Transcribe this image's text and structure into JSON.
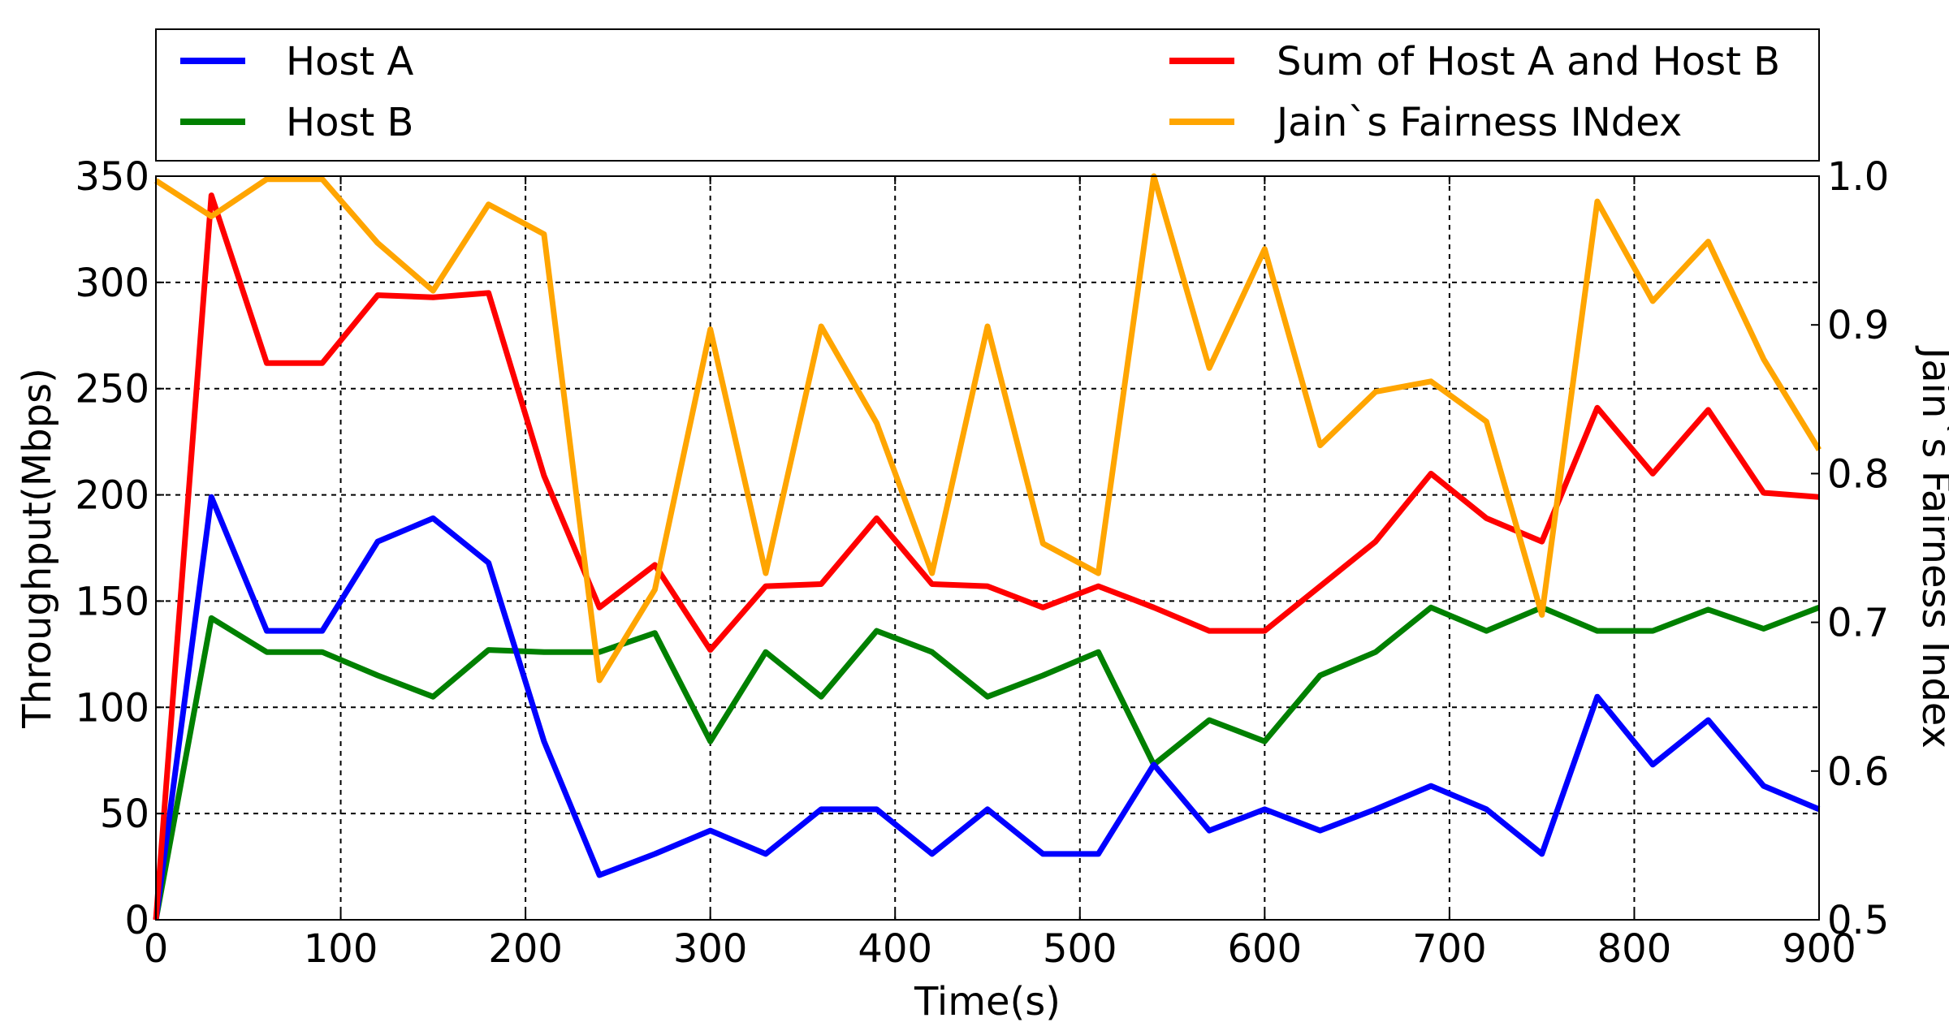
{
  "chart_data": {
    "type": "line",
    "xlabel": "Time(s)",
    "ylabel": "Throughput(Mbps)",
    "y2label": "Jain`s Fairness Index",
    "xlim": [
      0,
      900
    ],
    "ylim": [
      0,
      350
    ],
    "y2lim": [
      0.5,
      1.0
    ],
    "xticks": [
      0,
      100,
      200,
      300,
      400,
      500,
      600,
      700,
      800,
      900
    ],
    "yticks": [
      0,
      50,
      100,
      150,
      200,
      250,
      300,
      350
    ],
    "y2ticks": [
      "0.5",
      "0.6",
      "0.7",
      "0.8",
      "0.9",
      "1.0"
    ],
    "grid": true,
    "legend_position": "top",
    "series": [
      {
        "name": "Host A",
        "color": "#0000ff",
        "axis": "left",
        "x": [
          0,
          30,
          60,
          90,
          120,
          150,
          180,
          210,
          240,
          270,
          300,
          330,
          360,
          390,
          420,
          450,
          480,
          510,
          540,
          570,
          600,
          630,
          660,
          690,
          720,
          750,
          780,
          810,
          840,
          870,
          900
        ],
        "y": [
          0,
          199,
          136,
          136,
          178,
          189,
          168,
          84,
          21,
          31,
          42,
          31,
          52,
          52,
          31,
          52,
          31,
          31,
          73,
          42,
          52,
          42,
          52,
          63,
          52,
          31,
          105,
          73,
          94,
          63,
          52
        ]
      },
      {
        "name": "Host B",
        "color": "#008000",
        "axis": "left",
        "x": [
          0,
          30,
          60,
          90,
          120,
          150,
          180,
          210,
          240,
          270,
          300,
          330,
          360,
          390,
          420,
          450,
          480,
          510,
          540,
          570,
          600,
          630,
          660,
          690,
          720,
          750,
          780,
          810,
          840,
          870,
          900
        ],
        "y": [
          0,
          142,
          126,
          126,
          115,
          105,
          127,
          126,
          126,
          135,
          84,
          126,
          105,
          136,
          126,
          105,
          115,
          126,
          73,
          94,
          84,
          115,
          126,
          147,
          136,
          147,
          136,
          136,
          146,
          137,
          147
        ]
      },
      {
        "name": "Sum of Host A and Host B",
        "color": "#ff0000",
        "axis": "left",
        "x": [
          0,
          30,
          60,
          90,
          120,
          150,
          180,
          210,
          240,
          270,
          300,
          330,
          360,
          390,
          420,
          450,
          480,
          510,
          540,
          570,
          600,
          630,
          660,
          690,
          720,
          750,
          780,
          810,
          840,
          870,
          900
        ],
        "y": [
          0,
          341,
          262,
          262,
          294,
          293,
          295,
          209,
          147,
          167,
          127,
          157,
          158,
          189,
          158,
          157,
          147,
          157,
          147,
          136,
          136,
          157,
          178,
          210,
          189,
          178,
          241,
          210,
          240,
          201,
          199
        ]
      },
      {
        "name": "Jain`s Fairness INdex",
        "color": "#ffa500",
        "axis": "right",
        "x": [
          0,
          30,
          60,
          90,
          120,
          150,
          180,
          210,
          240,
          270,
          300,
          330,
          360,
          390,
          420,
          450,
          480,
          510,
          540,
          570,
          600,
          630,
          660,
          690,
          720,
          750,
          780,
          810,
          840,
          870,
          900
        ],
        "y": [
          0.997,
          0.973,
          0.998,
          0.998,
          0.955,
          0.923,
          0.981,
          0.961,
          0.661,
          0.722,
          0.897,
          0.733,
          0.899,
          0.834,
          0.733,
          0.899,
          0.753,
          0.733,
          1.0,
          0.871,
          0.951,
          0.819,
          0.855,
          0.862,
          0.835,
          0.705,
          0.983,
          0.916,
          0.956,
          0.877,
          0.816
        ]
      }
    ]
  }
}
